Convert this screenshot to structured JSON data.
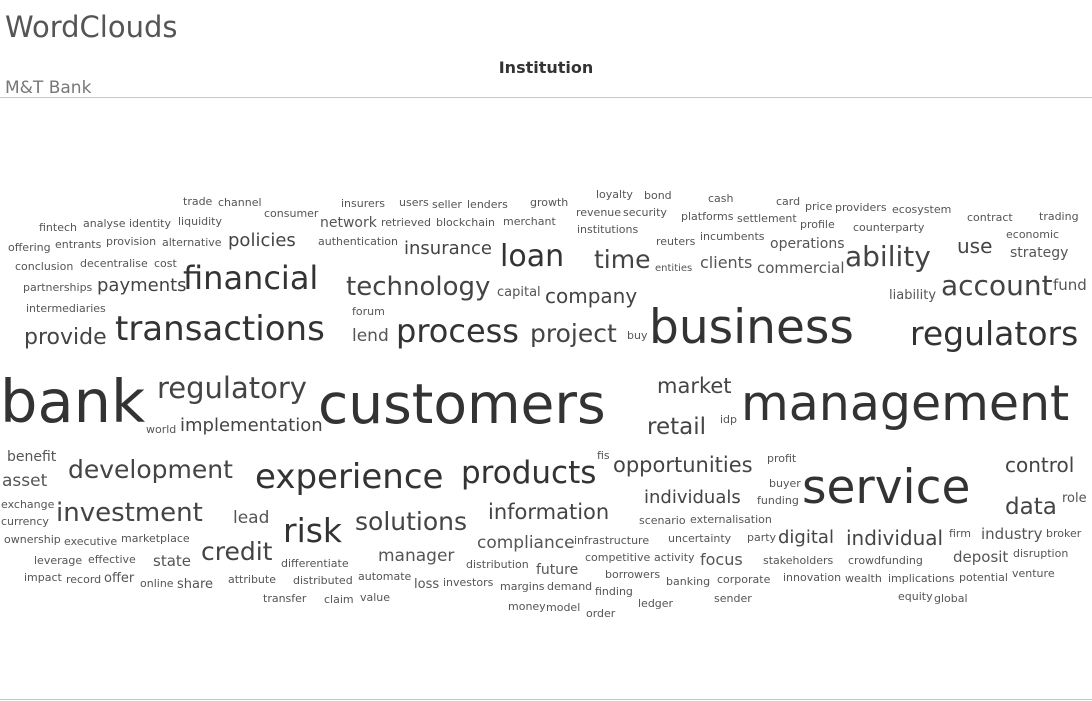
{
  "page": {
    "title": "WordClouds"
  },
  "header": {
    "column_label": "Institution"
  },
  "row": {
    "institution": "M&T Bank"
  },
  "chart_data": {
    "type": "wordcloud",
    "palette": {
      "large": "#333333",
      "medium": "#444444",
      "small": "#555555"
    },
    "words": [
      {
        "text": "bank",
        "weight": 59
      },
      {
        "text": "customers",
        "weight": 55
      },
      {
        "text": "management",
        "weight": 49
      },
      {
        "text": "business",
        "weight": 47
      },
      {
        "text": "service",
        "weight": 47
      },
      {
        "text": "experience",
        "weight": 34
      },
      {
        "text": "transactions",
        "weight": 34
      },
      {
        "text": "regulators",
        "weight": 33
      },
      {
        "text": "risk",
        "weight": 33
      },
      {
        "text": "financial",
        "weight": 32
      },
      {
        "text": "process",
        "weight": 32
      },
      {
        "text": "products",
        "weight": 31
      },
      {
        "text": "loan",
        "weight": 30
      },
      {
        "text": "regulatory",
        "weight": 29
      },
      {
        "text": "ability",
        "weight": 28
      },
      {
        "text": "account",
        "weight": 28
      },
      {
        "text": "technology",
        "weight": 26
      },
      {
        "text": "investment",
        "weight": 26
      },
      {
        "text": "project",
        "weight": 25
      },
      {
        "text": "development",
        "weight": 25
      },
      {
        "text": "credit",
        "weight": 25
      },
      {
        "text": "solutions",
        "weight": 25
      },
      {
        "text": "time",
        "weight": 25
      },
      {
        "text": "retail",
        "weight": 23
      },
      {
        "text": "data",
        "weight": 23
      },
      {
        "text": "provide",
        "weight": 22
      },
      {
        "text": "market",
        "weight": 21
      },
      {
        "text": "opportunities",
        "weight": 21
      },
      {
        "text": "information",
        "weight": 21
      },
      {
        "text": "company",
        "weight": 20
      },
      {
        "text": "control",
        "weight": 20
      },
      {
        "text": "individual",
        "weight": 20
      },
      {
        "text": "policies",
        "weight": 18
      },
      {
        "text": "insurance",
        "weight": 18
      },
      {
        "text": "payments",
        "weight": 18
      },
      {
        "text": "implementation",
        "weight": 18
      },
      {
        "text": "individuals",
        "weight": 18
      },
      {
        "text": "use",
        "weight": 20
      },
      {
        "text": "manager",
        "weight": 17
      },
      {
        "text": "compliance",
        "weight": 17
      },
      {
        "text": "digital",
        "weight": 18
      },
      {
        "text": "asset",
        "weight": 17
      },
      {
        "text": "lend",
        "weight": 17
      },
      {
        "text": "lead",
        "weight": 17
      },
      {
        "text": "focus",
        "weight": 16
      },
      {
        "text": "state",
        "weight": 15
      },
      {
        "text": "fund",
        "weight": 15
      },
      {
        "text": "strategy",
        "weight": 14
      },
      {
        "text": "clients",
        "weight": 16
      },
      {
        "text": "commercial",
        "weight": 15
      },
      {
        "text": "operations",
        "weight": 14
      },
      {
        "text": "industry",
        "weight": 15
      },
      {
        "text": "deposit",
        "weight": 15
      },
      {
        "text": "benefit",
        "weight": 14
      },
      {
        "text": "capital",
        "weight": 13
      },
      {
        "text": "liability",
        "weight": 13
      },
      {
        "text": "future",
        "weight": 14
      },
      {
        "text": "share",
        "weight": 13
      },
      {
        "text": "loss",
        "weight": 13
      },
      {
        "text": "offer",
        "weight": 13
      }
    ]
  },
  "words": [
    "trade",
    "channel",
    "insurers",
    "users",
    "seller",
    "lenders",
    "growth",
    "loyalty",
    "bond",
    "cash",
    "card",
    "price",
    "providers",
    "ecosystem",
    "fintech",
    "analyse",
    "identity",
    "liquidity",
    "consumer",
    "network",
    "retrieved",
    "blockchain",
    "merchant",
    "revenue",
    "security",
    "platforms",
    "settlement",
    "profile",
    "counterparty",
    "contract",
    "trading",
    "offering",
    "entrants",
    "provision",
    "alternative",
    "policies",
    "authentication",
    "institutions",
    "reuters",
    "incumbents",
    "operations",
    "economic",
    "conclusion",
    "decentralise",
    "cost",
    "insurance",
    "loan",
    "time",
    "entities",
    "clients",
    "commercial",
    "ability",
    "use",
    "strategy",
    "partnerships",
    "payments",
    "financial",
    "technology",
    "capital",
    "company",
    "liability",
    "account",
    "fund",
    "intermediaries",
    "forum",
    "provide",
    "transactions",
    "lend",
    "process",
    "project",
    "buy",
    "business",
    "regulators",
    "bank",
    "regulatory",
    "customers",
    "market",
    "management",
    "world",
    "implementation",
    "retail",
    "idp",
    "benefit",
    "fis",
    "profit",
    "asset",
    "development",
    "experience",
    "products",
    "opportunities",
    "service",
    "control",
    "exchange",
    "buyer",
    "individuals",
    "funding",
    "data",
    "role",
    "currency",
    "investment",
    "information",
    "ownership",
    "executive",
    "marketplace",
    "lead",
    "risk",
    "solutions",
    "scenario",
    "externalisation",
    "firm",
    "industry",
    "broker",
    "leverage",
    "effective",
    "state",
    "credit",
    "manager",
    "compliance",
    "infrastructure",
    "uncertainty",
    "party",
    "digital",
    "individual",
    "impact",
    "record",
    "offer",
    "differentiate",
    "competitive",
    "activity",
    "focus",
    "stakeholders",
    "crowdfunding",
    "deposit",
    "disruption",
    "online",
    "share",
    "attribute",
    "distributed",
    "automate",
    "loss",
    "investors",
    "distribution",
    "future",
    "borrowers",
    "banking",
    "corporate",
    "innovation",
    "wealth",
    "implications",
    "potential",
    "venture",
    "transfer",
    "claim",
    "value",
    "margins",
    "demand",
    "finding",
    "ledger",
    "sender",
    "equity",
    "global",
    "money",
    "model",
    "order"
  ]
}
